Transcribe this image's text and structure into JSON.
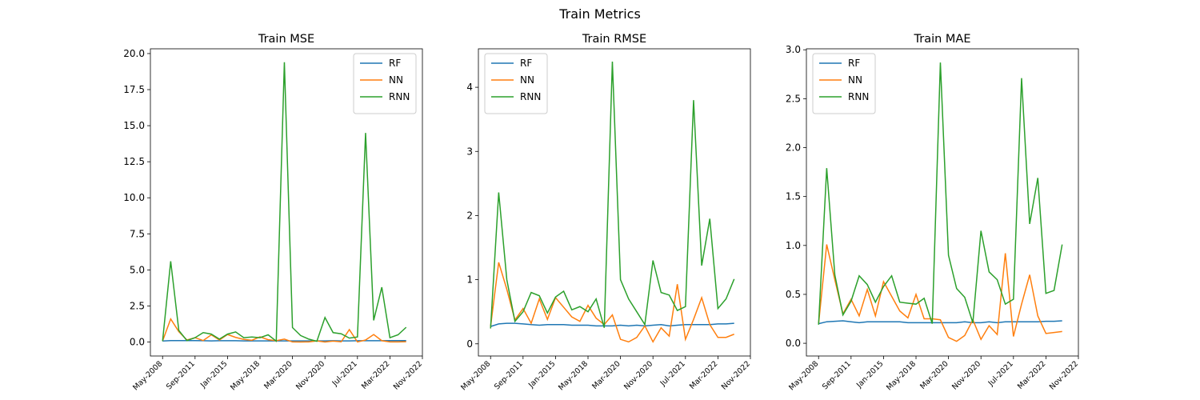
{
  "title": "Train Metrics",
  "chart_data": [
    {
      "type": "line",
      "title": "Train MSE",
      "legend": "upper right",
      "grid": false,
      "x": [
        0,
        1,
        2,
        3,
        4,
        5,
        6,
        7,
        8,
        9,
        10,
        11,
        12,
        13,
        14,
        15,
        16,
        17,
        18,
        19,
        20,
        21,
        22,
        23,
        24,
        25,
        26,
        27,
        28,
        29,
        30
      ],
      "xlim": [
        -1.5,
        32
      ],
      "xticks": [
        {
          "value": 0,
          "label": "May-2008"
        },
        {
          "value": 4,
          "label": "Sep-2011"
        },
        {
          "value": 8,
          "label": "Jan-2015"
        },
        {
          "value": 12,
          "label": "May-2018"
        },
        {
          "value": 16,
          "label": "Mar-2020"
        },
        {
          "value": 20,
          "label": "Nov-2020"
        },
        {
          "value": 24,
          "label": "Jul-2021"
        },
        {
          "value": 28,
          "label": "Mar-2022"
        },
        {
          "value": 32,
          "label": "Nov-2022"
        }
      ],
      "ylim": [
        -0.97,
        20.33
      ],
      "yticks": [
        {
          "value": 0,
          "label": "0.0"
        },
        {
          "value": 2.5,
          "label": "2.5"
        },
        {
          "value": 5,
          "label": "5.0"
        },
        {
          "value": 7.5,
          "label": "7.5"
        },
        {
          "value": 10,
          "label": "10.0"
        },
        {
          "value": 12.5,
          "label": "12.5"
        },
        {
          "value": 15,
          "label": "15.0"
        },
        {
          "value": 17.5,
          "label": "17.5"
        },
        {
          "value": 20,
          "label": "20.0"
        }
      ],
      "series": [
        {
          "name": "RF",
          "color": "#1f77b4",
          "values": [
            0.07,
            0.1,
            0.1,
            0.1,
            0.1,
            0.09,
            0.08,
            0.09,
            0.09,
            0.09,
            0.08,
            0.08,
            0.08,
            0.08,
            0.08,
            0.08,
            0.08,
            0.08,
            0.08,
            0.08,
            0.08,
            0.09,
            0.08,
            0.08,
            0.09,
            0.09,
            0.09,
            0.09,
            0.1,
            0.1,
            0.1
          ]
        },
        {
          "name": "NN",
          "color": "#ff7f0e",
          "values": [
            0.07,
            1.6,
            0.72,
            0.14,
            0.3,
            0.1,
            0.5,
            0.14,
            0.52,
            0.32,
            0.18,
            0.12,
            0.36,
            0.16,
            0.09,
            0.2,
            0.005,
            0.001,
            0.01,
            0.08,
            0.001,
            0.06,
            0.015,
            0.86,
            0.005,
            0.14,
            0.52,
            0.09,
            0.01,
            0.01,
            0.02
          ]
        },
        {
          "name": "RNN",
          "color": "#2ca02c",
          "values": [
            0.06,
            5.6,
            0.8,
            0.1,
            0.3,
            0.65,
            0.55,
            0.2,
            0.55,
            0.7,
            0.3,
            0.35,
            0.3,
            0.5,
            0.06,
            19.4,
            1.0,
            0.45,
            0.2,
            0.05,
            1.7,
            0.65,
            0.57,
            0.27,
            0.35,
            14.5,
            1.5,
            3.8,
            0.3,
            0.5,
            1.02
          ]
        }
      ]
    },
    {
      "type": "line",
      "title": "Train RMSE",
      "legend": "upper left",
      "grid": false,
      "x": [
        0,
        1,
        2,
        3,
        4,
        5,
        6,
        7,
        8,
        9,
        10,
        11,
        12,
        13,
        14,
        15,
        16,
        17,
        18,
        19,
        20,
        21,
        22,
        23,
        24,
        25,
        26,
        27,
        28,
        29,
        30
      ],
      "xlim": [
        -1.5,
        32
      ],
      "xticks": [
        {
          "value": 0,
          "label": "May-2008"
        },
        {
          "value": 4,
          "label": "Sep-2011"
        },
        {
          "value": 8,
          "label": "Jan-2015"
        },
        {
          "value": 12,
          "label": "May-2018"
        },
        {
          "value": 16,
          "label": "Mar-2020"
        },
        {
          "value": 20,
          "label": "Nov-2020"
        },
        {
          "value": 24,
          "label": "Jul-2021"
        },
        {
          "value": 28,
          "label": "Mar-2022"
        },
        {
          "value": 32,
          "label": "Nov-2022"
        }
      ],
      "ylim": [
        -0.19,
        4.6
      ],
      "yticks": [
        0,
        1,
        2,
        3,
        4
      ],
      "series": [
        {
          "name": "RF",
          "color": "#1f77b4",
          "values": [
            0.27,
            0.31,
            0.32,
            0.32,
            0.31,
            0.3,
            0.29,
            0.3,
            0.3,
            0.3,
            0.29,
            0.29,
            0.29,
            0.28,
            0.28,
            0.28,
            0.29,
            0.28,
            0.29,
            0.28,
            0.29,
            0.3,
            0.28,
            0.29,
            0.3,
            0.3,
            0.3,
            0.3,
            0.31,
            0.31,
            0.32
          ]
        },
        {
          "name": "NN",
          "color": "#ff7f0e",
          "values": [
            0.27,
            1.27,
            0.85,
            0.37,
            0.55,
            0.32,
            0.7,
            0.38,
            0.72,
            0.57,
            0.42,
            0.35,
            0.6,
            0.4,
            0.3,
            0.45,
            0.07,
            0.03,
            0.1,
            0.28,
            0.03,
            0.25,
            0.12,
            0.93,
            0.07,
            0.38,
            0.72,
            0.3,
            0.1,
            0.1,
            0.15
          ]
        },
        {
          "name": "RNN",
          "color": "#2ca02c",
          "values": [
            0.24,
            2.36,
            1.0,
            0.35,
            0.5,
            0.8,
            0.75,
            0.48,
            0.73,
            0.82,
            0.53,
            0.58,
            0.5,
            0.7,
            0.25,
            4.4,
            1.0,
            0.7,
            0.5,
            0.3,
            1.3,
            0.8,
            0.76,
            0.52,
            0.58,
            3.8,
            1.22,
            1.95,
            0.55,
            0.7,
            1.01
          ]
        }
      ]
    },
    {
      "type": "line",
      "title": "Train MAE",
      "legend": "upper left",
      "grid": false,
      "x": [
        0,
        1,
        2,
        3,
        4,
        5,
        6,
        7,
        8,
        9,
        10,
        11,
        12,
        13,
        14,
        15,
        16,
        17,
        18,
        19,
        20,
        21,
        22,
        23,
        24,
        25,
        26,
        27,
        28,
        29,
        30
      ],
      "xlim": [
        -1.5,
        32
      ],
      "xticks": [
        {
          "value": 0,
          "label": "May-2008"
        },
        {
          "value": 4,
          "label": "Sep-2011"
        },
        {
          "value": 8,
          "label": "Jan-2015"
        },
        {
          "value": 12,
          "label": "May-2018"
        },
        {
          "value": 16,
          "label": "Mar-2020"
        },
        {
          "value": 20,
          "label": "Nov-2020"
        },
        {
          "value": 24,
          "label": "Jul-2021"
        },
        {
          "value": 28,
          "label": "Mar-2022"
        },
        {
          "value": 32,
          "label": "Nov-2022"
        }
      ],
      "ylim": [
        -0.13,
        3.01
      ],
      "yticks": [
        {
          "value": 0,
          "label": "0.0"
        },
        {
          "value": 0.5,
          "label": "0.5"
        },
        {
          "value": 1,
          "label": "1.0"
        },
        {
          "value": 1.5,
          "label": "1.5"
        },
        {
          "value": 2,
          "label": "2.0"
        },
        {
          "value": 2.5,
          "label": "2.5"
        },
        {
          "value": 3,
          "label": "3.0"
        }
      ],
      "series": [
        {
          "name": "RF",
          "color": "#1f77b4",
          "values": [
            0.2,
            0.22,
            0.225,
            0.23,
            0.22,
            0.21,
            0.22,
            0.22,
            0.22,
            0.22,
            0.22,
            0.21,
            0.21,
            0.21,
            0.21,
            0.21,
            0.21,
            0.21,
            0.22,
            0.21,
            0.21,
            0.22,
            0.21,
            0.22,
            0.22,
            0.22,
            0.22,
            0.22,
            0.225,
            0.225,
            0.23
          ]
        },
        {
          "name": "NN",
          "color": "#ff7f0e",
          "values": [
            0.2,
            1.01,
            0.65,
            0.3,
            0.45,
            0.28,
            0.55,
            0.28,
            0.63,
            0.48,
            0.33,
            0.26,
            0.5,
            0.25,
            0.25,
            0.24,
            0.06,
            0.02,
            0.08,
            0.24,
            0.04,
            0.18,
            0.09,
            0.92,
            0.07,
            0.4,
            0.7,
            0.28,
            0.1,
            0.11,
            0.12
          ]
        },
        {
          "name": "RNN",
          "color": "#2ca02c",
          "values": [
            0.19,
            1.79,
            0.7,
            0.29,
            0.43,
            0.69,
            0.6,
            0.42,
            0.58,
            0.69,
            0.42,
            0.41,
            0.4,
            0.46,
            0.2,
            2.87,
            0.9,
            0.56,
            0.47,
            0.21,
            1.15,
            0.73,
            0.65,
            0.4,
            0.45,
            2.71,
            1.22,
            1.69,
            0.51,
            0.54,
            1.01
          ]
        }
      ]
    }
  ]
}
